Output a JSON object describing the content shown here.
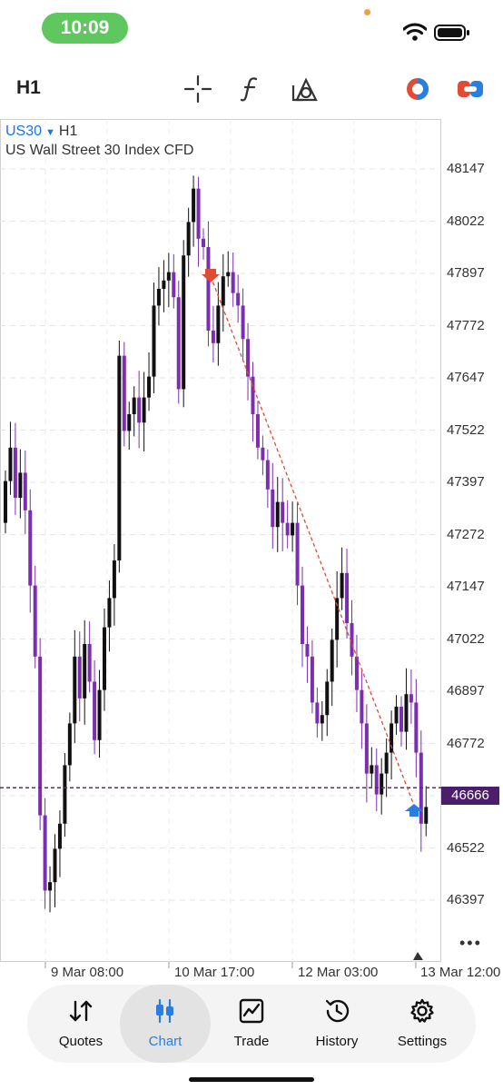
{
  "status_bar": {
    "time": "10:09"
  },
  "toolbar": {
    "timeframe": "H1",
    "tools": [
      "crosshair-icon",
      "function-icon",
      "objects-icon",
      "trade-signal-icon",
      "toggle-icon"
    ]
  },
  "chart": {
    "symbol": "US30",
    "timeframe": "H1",
    "description": "US Wall Street 30 Index CFD",
    "current_price": "46666",
    "price_axis": [
      "48147",
      "48022",
      "47897",
      "47772",
      "47647",
      "47522",
      "47397",
      "47272",
      "47147",
      "47022",
      "46897",
      "46772",
      "46647",
      "46522",
      "46397"
    ],
    "time_axis": [
      "9 Mar 08:00",
      "10 Mar 17:00",
      "12 Mar 03:00",
      "13 Mar 12:00"
    ],
    "colors": {
      "bull": "#111111",
      "bear": "#7b2fb0",
      "price_line": "#5a2a7a",
      "sell_arrow": "#e24b33",
      "buy_arrow": "#2a7de1",
      "trendline": "#e24b33"
    }
  },
  "chart_data": {
    "type": "candlestick",
    "title": "",
    "symbol": "US30",
    "timeframe": "H1",
    "ylim": [
      46300,
      48230
    ],
    "current_price": 46666,
    "closes": [
      47400,
      47480,
      47360,
      47420,
      47330,
      47150,
      46980,
      46600,
      46420,
      46440,
      46520,
      46580,
      46720,
      46820,
      46980,
      46880,
      47010,
      46920,
      46780,
      46900,
      47050,
      47120,
      47210,
      47700,
      47520,
      47560,
      47600,
      47540,
      47600,
      47650,
      47820,
      47860,
      47880,
      47900,
      47840,
      47620,
      47940,
      48020,
      48100,
      47980,
      47960,
      47760,
      47730,
      47820,
      47890,
      47900,
      47850,
      47820,
      47740,
      47650,
      47560,
      47480,
      47450,
      47380,
      47290,
      47350,
      47300,
      47270,
      47300,
      47150,
      47010,
      46980,
      46870,
      46820,
      46840,
      46920,
      47020,
      47120,
      47180,
      47060,
      46980,
      46900,
      46820,
      46700,
      46720,
      46650,
      46700,
      46750,
      46820,
      46860,
      46800,
      46890,
      46870,
      46750,
      46580,
      46620
    ]
  },
  "tabbar": {
    "items": [
      {
        "label": "Quotes",
        "icon": "quotes-icon"
      },
      {
        "label": "Chart",
        "icon": "chart-icon"
      },
      {
        "label": "Trade",
        "icon": "trade-icon"
      },
      {
        "label": "History",
        "icon": "history-icon"
      },
      {
        "label": "Settings",
        "icon": "settings-icon"
      }
    ],
    "active": "Chart"
  }
}
